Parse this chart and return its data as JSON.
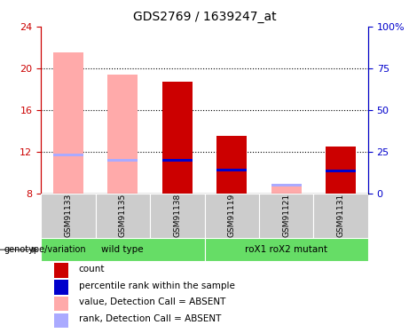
{
  "title": "GDS2769 / 1639247_at",
  "samples": [
    "GSM91133",
    "GSM91135",
    "GSM91138",
    "GSM91119",
    "GSM91121",
    "GSM91131"
  ],
  "groups": [
    {
      "name": "wild type",
      "indices": [
        0,
        1,
        2
      ]
    },
    {
      "name": "roX1 roX2 mutant",
      "indices": [
        3,
        4,
        5
      ]
    }
  ],
  "ylim_left": [
    8,
    24
  ],
  "ylim_right": [
    0,
    100
  ],
  "yticks_left": [
    8,
    12,
    16,
    20,
    24
  ],
  "yticks_right": [
    0,
    25,
    50,
    75,
    100
  ],
  "yticklabels_right": [
    "0",
    "25",
    "50",
    "75",
    "100%"
  ],
  "bar_width": 0.55,
  "count_color": "#cc0000",
  "rank_color": "#0000cc",
  "absent_value_color": "#ffaaaa",
  "absent_rank_color": "#aaaaff",
  "bars": [
    {
      "sample": "GSM91133",
      "absent": true,
      "value": 21.5,
      "rank": 11.5
    },
    {
      "sample": "GSM91135",
      "absent": true,
      "value": 19.4,
      "rank": 11.0
    },
    {
      "sample": "GSM91138",
      "absent": false,
      "value": 18.7,
      "rank": 11.0
    },
    {
      "sample": "GSM91119",
      "absent": false,
      "value": 13.5,
      "rank": 10.1
    },
    {
      "sample": "GSM91121",
      "absent": true,
      "value": 8.8,
      "rank": 8.6
    },
    {
      "sample": "GSM91131",
      "absent": false,
      "value": 12.5,
      "rank": 10.0
    }
  ],
  "legend_items": [
    {
      "label": "count",
      "color": "#cc0000"
    },
    {
      "label": "percentile rank within the sample",
      "color": "#0000cc"
    },
    {
      "label": "value, Detection Call = ABSENT",
      "color": "#ffaaaa"
    },
    {
      "label": "rank, Detection Call = ABSENT",
      "color": "#aaaaff"
    }
  ],
  "left_axis_color": "#cc0000",
  "right_axis_color": "#0000cc",
  "grid_color": "black",
  "sample_box_color": "#cccccc",
  "group_box_color": "#66dd66",
  "genotype_label": "genotype/variation"
}
